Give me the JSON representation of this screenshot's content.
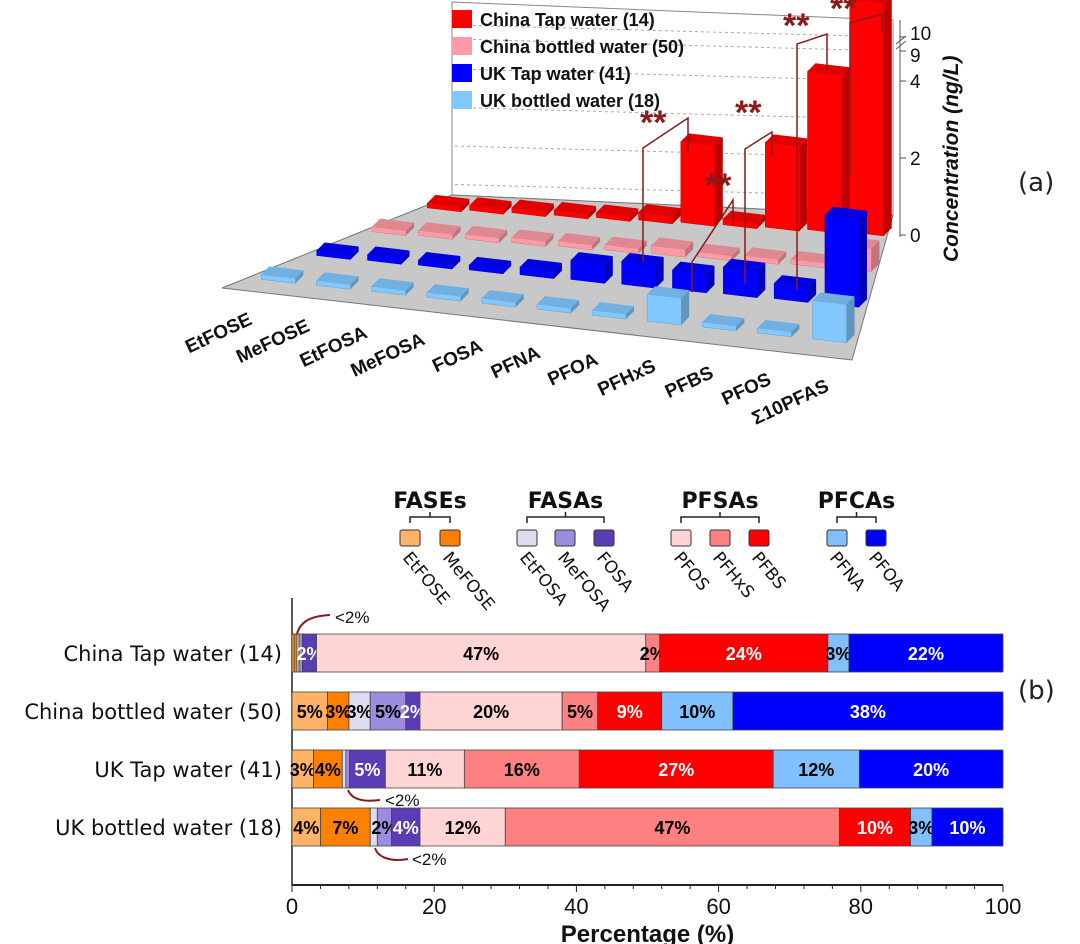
{
  "chart_data": [
    {
      "type": "bar",
      "subtype": "3d-grouped-bar",
      "panel_label": "(a)",
      "title": "",
      "xlabel": "",
      "ylabel": "Concentration (ng/L)",
      "yticks": [
        "0",
        "2",
        "4",
        "9",
        "10"
      ],
      "ylim": [
        0,
        10
      ],
      "axis_break": "between 4 and 9",
      "categories": [
        "EtFOSE",
        "MeFOSE",
        "EtFOSA",
        "MeFOSA",
        "FOSA",
        "PFNA",
        "PFOA",
        "PFHxS",
        "PFBS",
        "PFOS",
        "Σ10PFAS"
      ],
      "legend": {
        "placement": "top-left",
        "entries": [
          "China Tap water (14)",
          "China bottled water (50)",
          "UK Tap water (41)",
          "UK bottled water (18)"
        ]
      },
      "series": [
        {
          "name": "China Tap water (14)",
          "color": "#ff0000",
          "values": [
            0.05,
            0.05,
            0.05,
            0.05,
            0.1,
            0.2,
            2.1,
            0.15,
            2.2,
            4.3,
            9.6
          ]
        },
        {
          "name": "China bottled water (50)",
          "color": "#ff9aa6",
          "values": [
            0.05,
            0.05,
            0.05,
            0.05,
            0.05,
            0.05,
            0.2,
            0.05,
            0.05,
            0.05,
            0.6
          ]
        },
        {
          "name": "UK Tap water (41)",
          "color": "#0000ff",
          "values": [
            0.1,
            0.15,
            0.05,
            0.05,
            0.2,
            0.5,
            0.6,
            0.5,
            0.7,
            0.4,
            2.3
          ]
        },
        {
          "name": "UK bottled water (18)",
          "color": "#80c8ff",
          "values": [
            0.05,
            0.05,
            0.05,
            0.05,
            0.05,
            0.05,
            0.05,
            0.7,
            0.05,
            0.05,
            1.0
          ]
        }
      ],
      "annotations": [
        {
          "text": "**",
          "category": "PFHxS"
        },
        {
          "text": "**",
          "category": "PFBS"
        },
        {
          "text": "**",
          "category": "PFOS"
        },
        {
          "text": "**",
          "category": "Σ10PFAS"
        },
        {
          "text": "**",
          "category": "Σ10PFAS"
        }
      ]
    },
    {
      "type": "bar",
      "subtype": "stacked-horizontal",
      "panel_label": "(b)",
      "title": "",
      "xlabel": "Percentage (%)",
      "ylabel": "",
      "xlim": [
        0,
        100
      ],
      "xticks": [
        "0",
        "20",
        "40",
        "60",
        "80",
        "100"
      ],
      "categories": [
        "China Tap water (14)",
        "China bottled water (50)",
        "UK Tap water (41)",
        "UK bottled water (18)"
      ],
      "legend_groups": [
        {
          "name": "FASEs",
          "members": [
            "EtFOSE",
            "MeFOSE"
          ]
        },
        {
          "name": "FASAs",
          "members": [
            "EtFOSA",
            "MeFOSA",
            "FOSA"
          ]
        },
        {
          "name": "PFSAs",
          "members": [
            "PFOS",
            "PFHxS",
            "PFBS"
          ]
        },
        {
          "name": "PFCAs",
          "members": [
            "PFNA",
            "PFOA"
          ]
        }
      ],
      "series": [
        {
          "name": "EtFOSE",
          "color": "#ffb366",
          "values": [
            0.3,
            5,
            3,
            4
          ],
          "labels": [
            "",
            "5%",
            "3%",
            "4%"
          ],
          "label_color": "#000"
        },
        {
          "name": "MeFOSE",
          "color": "#ff8000",
          "values": [
            0.4,
            3,
            4,
            7
          ],
          "labels": [
            "",
            "3%",
            "4%",
            "7%"
          ],
          "label_color": "#000"
        },
        {
          "name": "EtFOSA",
          "color": "#e0dcf0",
          "values": [
            0.3,
            3,
            0.5,
            1
          ],
          "labels": [
            "",
            "3%",
            "",
            ""
          ],
          "label_color": "#000"
        },
        {
          "name": "MeFOSA",
          "color": "#9c8ce0",
          "values": [
            0.5,
            5,
            0.5,
            2
          ],
          "labels": [
            "",
            "5%",
            "",
            "2%"
          ],
          "label_color": "#000"
        },
        {
          "name": "FOSA",
          "color": "#5a3cb4",
          "values": [
            2,
            2,
            5,
            4
          ],
          "labels": [
            "2%",
            "2%",
            "5%",
            "4%"
          ],
          "label_color": "#fff"
        },
        {
          "name": "PFOS",
          "color": "#ffd4d4",
          "values": [
            47,
            20,
            11,
            12
          ],
          "labels": [
            "47%",
            "20%",
            "11%",
            "12%"
          ],
          "label_color": "#000"
        },
        {
          "name": "PFHxS",
          "color": "#ff8080",
          "values": [
            2,
            5,
            16,
            47
          ],
          "labels": [
            "2%",
            "5%",
            "16%",
            "47%"
          ],
          "label_color": "#000"
        },
        {
          "name": "PFBS",
          "color": "#ff0000",
          "values": [
            24,
            9,
            27,
            10
          ],
          "labels": [
            "24%",
            "9%",
            "27%",
            "10%"
          ],
          "label_color": "#fff"
        },
        {
          "name": "PFNA",
          "color": "#80c0ff",
          "values": [
            3,
            10,
            12,
            3
          ],
          "labels": [
            "3%",
            "10%",
            "12%",
            "3%"
          ],
          "label_color": "#000"
        },
        {
          "name": "PFOA",
          "color": "#0000ff",
          "values": [
            22,
            38,
            20,
            10
          ],
          "labels": [
            "22%",
            "38%",
            "20%",
            "10%"
          ],
          "label_color": "#fff"
        }
      ],
      "annotations": [
        {
          "text": "<2%",
          "row": "China Tap water (14)",
          "position": "above"
        },
        {
          "text": "<2%",
          "row": "UK Tap water (41)",
          "position": "below"
        },
        {
          "text": "<2%",
          "row": "UK bottled water (18)",
          "position": "below"
        }
      ]
    }
  ]
}
